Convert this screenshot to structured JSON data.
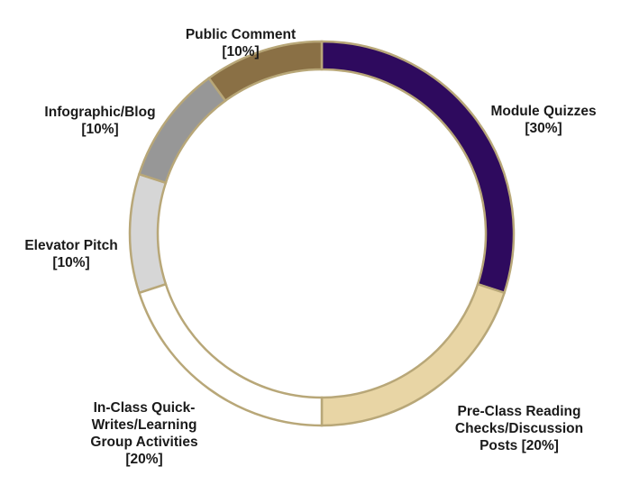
{
  "chart_data": {
    "type": "pie",
    "variant": "donut",
    "title": "",
    "categories": [
      "Module Quizzes",
      "Pre-Class Reading Checks/Discussion Posts",
      "In-Class Quick-Writes/Learning Group Activities",
      "Elevator Pitch",
      "Infographic/Blog",
      "Public Comment"
    ],
    "values": [
      30,
      20,
      20,
      10,
      10,
      10
    ],
    "value_labels": [
      "[30%]",
      "[20%]",
      "[20%]",
      "[10%]",
      "[10%]",
      "[10%]"
    ],
    "display_labels": [
      "Module Quizzes",
      "Pre-Class Reading\nChecks/Discussion\nPosts [20%]",
      "In-Class Quick-\nWrites/Learning\nGroup Activities",
      "Elevator Pitch",
      "Infographic/Blog",
      "Public Comment"
    ],
    "colors": [
      "#2e0a5e",
      "#e8d5a5",
      "#ffffff",
      "#d6d6d6",
      "#979797",
      "#8a7045"
    ],
    "border_color": "#b8a778",
    "legend": "none",
    "start_angle_deg": 0,
    "direction": "clockwise"
  }
}
